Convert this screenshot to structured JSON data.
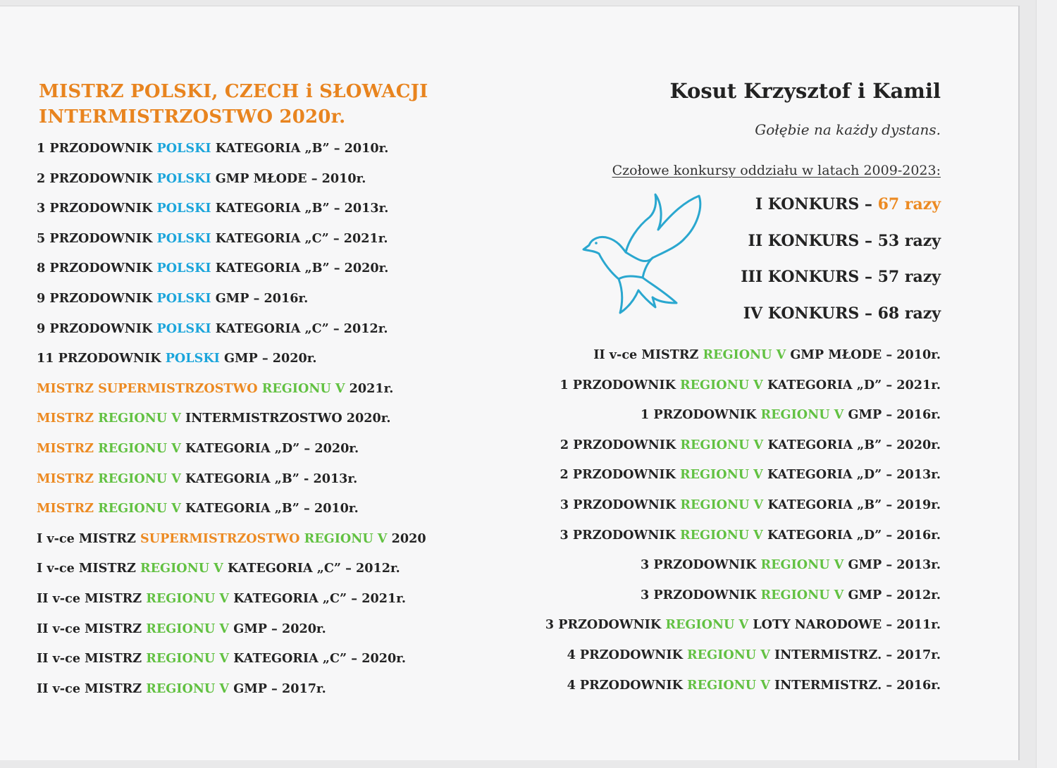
{
  "colors": {
    "orange": "#ec8a22",
    "blue": "#1ba5db",
    "green": "#62c142",
    "text": "#232323"
  },
  "left": {
    "title": [
      "MISTRZ POLSKI, CZECH i SŁOWACJI",
      "INTERMISTRZOSTWO  2020r."
    ],
    "lines": [
      [
        [
          "1 PRZODOWNIK ",
          "k"
        ],
        [
          "POLSKI",
          "b"
        ],
        [
          " KATEGORIA „B” – 2010r.",
          "k"
        ]
      ],
      [
        [
          "2 PRZODOWNIK ",
          "k"
        ],
        [
          "POLSKI",
          "b"
        ],
        [
          " GMP MŁODE – 2010r.",
          "k"
        ]
      ],
      [
        [
          "3 PRZODOWNIK ",
          "k"
        ],
        [
          "POLSKI",
          "b"
        ],
        [
          " KATEGORIA „B” – 2013r.",
          "k"
        ]
      ],
      [
        [
          "5 PRZODOWNIK ",
          "k"
        ],
        [
          "POLSKI",
          "b"
        ],
        [
          " KATEGORIA „C” – 2021r.",
          "k"
        ]
      ],
      [
        [
          "8 PRZODOWNIK ",
          "k"
        ],
        [
          "POLSKI",
          "b"
        ],
        [
          " KATEGORIA „B” – 2020r.",
          "k"
        ]
      ],
      [
        [
          "9 PRZODOWNIK ",
          "k"
        ],
        [
          "POLSKI",
          "b"
        ],
        [
          " GMP – 2016r.",
          "k"
        ]
      ],
      [
        [
          "9 PRZODOWNIK ",
          "k"
        ],
        [
          "POLSKI",
          "b"
        ],
        [
          " KATEGORIA „C” – 2012r.",
          "k"
        ]
      ],
      [
        [
          "11 PRZODOWNIK ",
          "k"
        ],
        [
          "POLSKI",
          "b"
        ],
        [
          " GMP – 2020r.",
          "k"
        ]
      ],
      [
        [
          "MISTRZ SUPERMISTRZOSTWO ",
          "o"
        ],
        [
          "REGIONU V",
          "g"
        ],
        [
          " 2021r.",
          "k"
        ]
      ],
      [
        [
          "MISTRZ ",
          "o"
        ],
        [
          "REGIONU V",
          "g"
        ],
        [
          " INTERMISTRZOSTWO 2020r.",
          "k"
        ]
      ],
      [
        [
          "MISTRZ ",
          "o"
        ],
        [
          "REGIONU V",
          "g"
        ],
        [
          " KATEGORIA „D” – 2020r.",
          "k"
        ]
      ],
      [
        [
          "MISTRZ ",
          "o"
        ],
        [
          "REGIONU V",
          "g"
        ],
        [
          " KATEGORIA „B” - 2013r.",
          "k"
        ]
      ],
      [
        [
          "MISTRZ ",
          "o"
        ],
        [
          "REGIONU V",
          "g"
        ],
        [
          " KATEGORIA „B” – 2010r.",
          "k"
        ]
      ],
      [
        [
          "I v-ce MISTRZ ",
          "k"
        ],
        [
          "SUPERMISTRZOSTWO",
          "o"
        ],
        [
          " REGIONU V",
          "g"
        ],
        [
          " 2020",
          "k"
        ]
      ],
      [
        [
          "I v-ce MISTRZ ",
          "k"
        ],
        [
          "REGIONU V",
          "g"
        ],
        [
          " KATEGORIA „C” – 2012r.",
          "k"
        ]
      ],
      [
        [
          "II v-ce MISTRZ ",
          "k"
        ],
        [
          "REGIONU V",
          "g"
        ],
        [
          " KATEGORIA „C” – 2021r.",
          "k"
        ]
      ],
      [
        [
          "II v-ce MISTRZ ",
          "k"
        ],
        [
          "REGIONU V",
          "g"
        ],
        [
          " GMP – 2020r.",
          "k"
        ]
      ],
      [
        [
          "II v-ce MISTRZ ",
          "k"
        ],
        [
          "REGIONU V",
          "g"
        ],
        [
          " KATEGORIA „C” – 2020r.",
          "k"
        ]
      ],
      [
        [
          "II v-ce MISTRZ ",
          "k"
        ],
        [
          "REGIONU V",
          "g"
        ],
        [
          " GMP – 2017r.",
          "k"
        ]
      ]
    ]
  },
  "right": {
    "name": "Kosut Krzysztof i Kamil",
    "motto": "Gołębie na każdy dystans.",
    "subtitle": "Czołowe konkursy oddziału w latach 2009-2023:",
    "dove_icon": "dove-icon",
    "konkursy": [
      [
        [
          "I KONKURS – ",
          "k"
        ],
        [
          "67 razy",
          "o"
        ]
      ],
      [
        [
          "II KONKURS – 53 razy",
          "k"
        ]
      ],
      [
        [
          "III KONKURS – 57 razy",
          "k"
        ]
      ],
      [
        [
          "IV KONKURS – 68 razy",
          "k"
        ]
      ]
    ],
    "lines": [
      [
        [
          "II v-ce MISTRZ ",
          "k"
        ],
        [
          "REGIONU V",
          "g"
        ],
        [
          " GMP MŁODE – 2010r.",
          "k"
        ]
      ],
      [
        [
          "1 PRZODOWNIK ",
          "k"
        ],
        [
          "REGIONU V",
          "g"
        ],
        [
          " KATEGORIA „D” – 2021r.",
          "k"
        ]
      ],
      [
        [
          "1 PRZODOWNIK ",
          "k"
        ],
        [
          "REGIONU V",
          "g"
        ],
        [
          " GMP – 2016r.",
          "k"
        ]
      ],
      [
        [
          "2 PRZODOWNIK ",
          "k"
        ],
        [
          "REGIONU V",
          "g"
        ],
        [
          " KATEGORIA „B” – 2020r.",
          "k"
        ]
      ],
      [
        [
          "2 PRZODOWNIK ",
          "k"
        ],
        [
          "REGIONU V",
          "g"
        ],
        [
          " KATEGORIA „D” – 2013r.",
          "k"
        ]
      ],
      [
        [
          "3 PRZODOWNIK ",
          "k"
        ],
        [
          "REGIONU V",
          "g"
        ],
        [
          " KATEGORIA „B” – 2019r.",
          "k"
        ]
      ],
      [
        [
          "3 PRZODOWNIK ",
          "k"
        ],
        [
          "REGIONU V",
          "g"
        ],
        [
          " KATEGORIA „D” – 2016r.",
          "k"
        ]
      ],
      [
        [
          "3 PRZODOWNIK ",
          "k"
        ],
        [
          "REGIONU V",
          "g"
        ],
        [
          " GMP – 2013r.",
          "k"
        ]
      ],
      [
        [
          "3 PRZODOWNIK ",
          "k"
        ],
        [
          "REGIONU V",
          "g"
        ],
        [
          " GMP – 2012r.",
          "k"
        ]
      ],
      [
        [
          "3 PRZODOWNIK ",
          "k"
        ],
        [
          "REGIONU V",
          "g"
        ],
        [
          " LOTY NARODOWE – 2011r.",
          "k"
        ]
      ],
      [
        [
          "4 PRZODOWNIK ",
          "k"
        ],
        [
          "REGIONU V",
          "g"
        ],
        [
          " INTERMISTRZ. – 2017r.",
          "k"
        ]
      ],
      [
        [
          "4 PRZODOWNIK ",
          "k"
        ],
        [
          "REGIONU V",
          "g"
        ],
        [
          " INTERMISTRZ. – 2016r.",
          "k"
        ]
      ]
    ]
  }
}
